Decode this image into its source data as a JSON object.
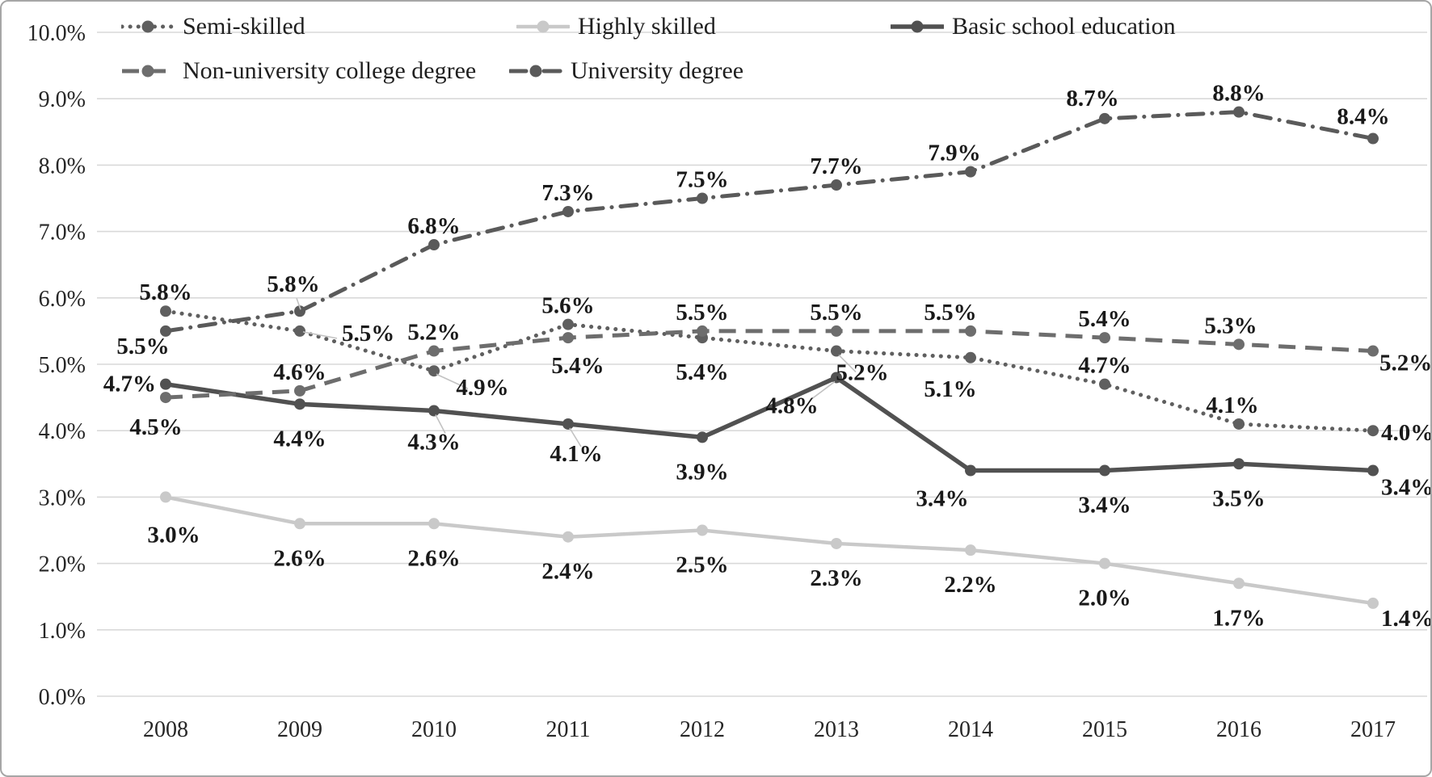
{
  "chart_data": {
    "type": "line",
    "title": "",
    "x_categories": [
      "2008",
      "2009",
      "2010",
      "2011",
      "2012",
      "2013",
      "2014",
      "2015",
      "2016",
      "2017"
    ],
    "y_ticks": [
      "10.0%",
      "9.0%",
      "8.0%",
      "7.0%",
      "6.0%",
      "5.0%",
      "4.0%",
      "3.0%",
      "2.0%",
      "1.0%",
      "0.0%"
    ],
    "y_range": [
      0,
      10
    ],
    "grid": true,
    "legend_position": "top",
    "colors": {
      "gridline": "#d9d9d9",
      "leader_line": "#c2c2c2",
      "axis_text": "#262626",
      "label_text": "#191919"
    },
    "series": [
      {
        "id": "semi-skilled",
        "name": "Semi-skilled",
        "color": "#5f5f5f",
        "dash": "dotted",
        "width": 5,
        "values": [
          5.8,
          5.5,
          4.9,
          5.6,
          5.4,
          5.2,
          5.1,
          4.7,
          4.1,
          4.0
        ],
        "point_labels": [
          "5.8%",
          "5.5%",
          "4.9%",
          "5.6%",
          "5.4%",
          "5.2%",
          "5.1%",
          "4.7%",
          "4.1%",
          "4.0%"
        ]
      },
      {
        "id": "highly-skilled",
        "name": "Highly skilled",
        "color": "#c9c9c9",
        "dash": "solid",
        "width": 4.5,
        "values": [
          3.0,
          2.6,
          2.6,
          2.4,
          2.5,
          2.3,
          2.2,
          2.0,
          1.7,
          1.4
        ],
        "point_labels": [
          "3.0%",
          "2.6%",
          "2.6%",
          "2.4%",
          "2.5%",
          "2.3%",
          "2.2%",
          "2.0%",
          "1.7%",
          "1.4%"
        ]
      },
      {
        "id": "basic-school-education",
        "name": "Basic school education",
        "color": "#515151",
        "dash": "solid",
        "width": 5.5,
        "values": [
          4.7,
          4.4,
          4.3,
          4.1,
          3.9,
          4.8,
          3.4,
          3.4,
          3.5,
          3.4
        ],
        "point_labels": [
          "4.7%",
          "4.4%",
          "4.3%",
          "4.1%",
          "3.9%",
          "4.8%",
          "3.4%",
          "3.4%",
          "3.5%",
          "3.4%"
        ]
      },
      {
        "id": "non-university-college-degree",
        "name": "Non-university college degree",
        "color": "#6d6d6d",
        "dash": "dashed",
        "width": 5,
        "values": [
          4.5,
          4.6,
          5.2,
          5.4,
          5.5,
          5.5,
          5.5,
          5.4,
          5.3,
          5.2
        ],
        "point_labels": [
          "4.5%",
          "4.6%",
          "5.2%",
          "5.4%",
          "5.5%",
          "5.5%",
          "5.5%",
          "5.4%",
          "5.3%",
          "5.2%"
        ]
      },
      {
        "id": "university-degree",
        "name": "University degree",
        "color": "#5a5a5a",
        "dash": "dashdot",
        "width": 5,
        "values": [
          5.5,
          5.8,
          6.8,
          7.3,
          7.5,
          7.7,
          7.9,
          8.7,
          8.8,
          8.4
        ],
        "point_labels": [
          "5.5%",
          "5.8%",
          "6.8%",
          "7.3%",
          "7.5%",
          "7.7%",
          "7.9%",
          "8.7%",
          "8.8%",
          "8.4%"
        ]
      }
    ],
    "legend_rows": [
      [
        "semi-skilled",
        "highly-skilled",
        "basic-school-education"
      ],
      [
        "non-university-college-degree",
        "university-degree"
      ]
    ],
    "legend_positions": [
      [
        {
          "x": 148,
          "y": 16
        },
        {
          "x": 637,
          "y": 16
        },
        {
          "x": 1100,
          "y": 16
        }
      ],
      [
        {
          "x": 148,
          "y": 71
        },
        {
          "x": 628,
          "y": 71
        }
      ]
    ],
    "label_placements": {
      "semi-skilled": [
        "a",
        [
          52,
          12,
          "s"
        ],
        [
          60,
          30,
          "m"
        ],
        "a",
        "b",
        [
          32,
          36,
          "m"
        ],
        [
          -25,
          48,
          "m"
        ],
        "a",
        [
          -8,
          -14,
          "m"
        ],
        [
          10,
          12,
          "s"
        ]
      ],
      "highly-skilled": [
        [
          10,
          56,
          "m"
        ],
        "b",
        "b",
        "b",
        "b",
        "b",
        "b",
        "b",
        "b",
        [
          10,
          28,
          "s"
        ]
      ],
      "basic-school-education": [
        [
          -12,
          9,
          "e"
        ],
        "b",
        [
          0,
          48,
          "m"
        ],
        [
          10,
          46,
          "m"
        ],
        "b",
        [
          -55,
          44,
          "m"
        ],
        [
          -35,
          44,
          "m"
        ],
        "b",
        "b",
        [
          10,
          30,
          "s"
        ]
      ],
      "non-university-college-degree": [
        [
          -12,
          46,
          "m"
        ],
        "a",
        "a",
        [
          12,
          44,
          "m"
        ],
        "a",
        "a",
        [
          -25,
          -14,
          "m"
        ],
        "a",
        [
          -10,
          -14,
          "m"
        ],
        [
          8,
          24,
          "s"
        ]
      ],
      "university-degree": [
        [
          -28,
          28,
          "m"
        ],
        [
          -8,
          -24,
          "m"
        ],
        "a",
        "a",
        "a",
        "a",
        [
          -20,
          -14,
          "m"
        ],
        [
          -15,
          -16,
          "m"
        ],
        "a",
        [
          -12,
          -18,
          "m"
        ]
      ]
    },
    "label_leaders": {
      "semi-skilled": {
        "1": [
          4,
          1,
          46,
          9
        ],
        "2": [
          3,
          4,
          42,
          22
        ],
        "5": [
          3,
          5,
          24,
          26
        ]
      },
      "basic-school-education": {
        "2": [
          2,
          5,
          14,
          28
        ],
        "3": [
          2,
          5,
          16,
          28
        ],
        "5": [
          -2,
          5,
          -30,
          26
        ]
      },
      "university-degree": {
        "1": [
          -4,
          -16,
          1,
          -2
        ]
      }
    }
  }
}
